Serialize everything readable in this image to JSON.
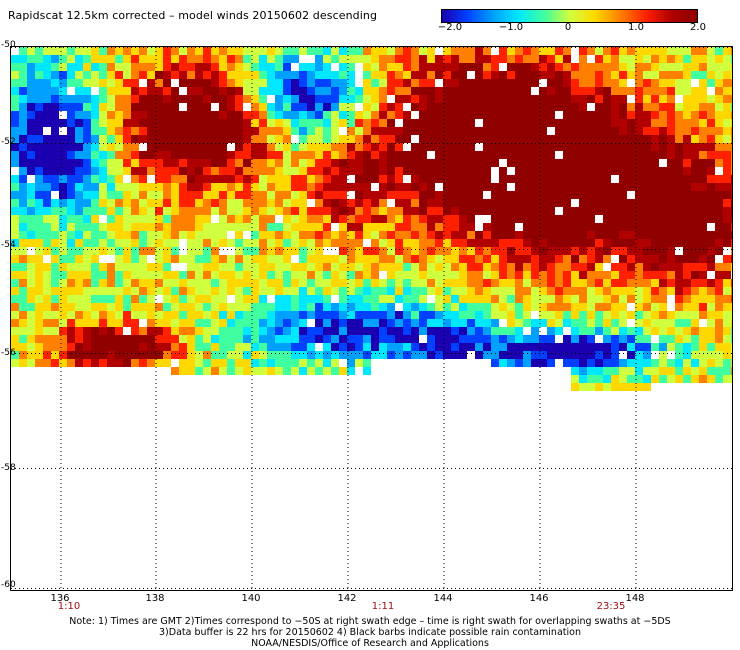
{
  "title": "Rapidscat 12.5km corrected – model winds 20150602 descending",
  "colorbar": {
    "labels": [
      "−2.0",
      "−1.0",
      "0",
      "1.0",
      "2.0"
    ],
    "range": [
      -2.0,
      2.0
    ],
    "colors": [
      "#1a00b0",
      "#0040ff",
      "#00a0ff",
      "#00e8ff",
      "#40ffa0",
      "#d0ff40",
      "#ffd800",
      "#ff8000",
      "#ff2000",
      "#b00000",
      "#900000"
    ]
  },
  "map": {
    "lat_labels": [
      "-50",
      "-52",
      "-54",
      "-56",
      "-58",
      "-60"
    ],
    "lon_labels": [
      "136",
      "138",
      "140",
      "142",
      "144",
      "146",
      "148"
    ],
    "time_labels": [
      "1:10",
      "1:11",
      "23:35"
    ]
  },
  "notes": [
    "Note: 1) Times are GMT 2)Times correspond to −50S at right swath edge – time is right swath for overlapping swaths at −5DS",
    "3)Data buffer is 22 hrs for 20150602 4) Black barbs indicate possible rain contamination",
    "NOAA/NESDIS/Office of Research and Applications"
  ]
}
